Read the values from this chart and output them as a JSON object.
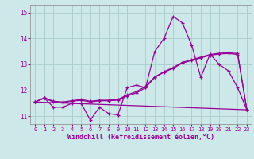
{
  "xlabel": "Windchill (Refroidissement éolien,°C)",
  "background_color": "#cce8e8",
  "grid_color": "#aacccc",
  "line_color": "#990099",
  "ylim": [
    10.7,
    15.3
  ],
  "xlim": [
    -0.5,
    23.5
  ],
  "yticks": [
    11,
    12,
    13,
    14,
    15
  ],
  "xticks": [
    0,
    1,
    2,
    3,
    4,
    5,
    6,
    7,
    8,
    9,
    10,
    11,
    12,
    13,
    14,
    15,
    16,
    17,
    18,
    19,
    20,
    21,
    22,
    23
  ],
  "curve1_x": [
    0,
    1,
    2,
    3,
    4,
    5,
    6,
    7,
    8,
    9,
    10,
    11,
    12,
    13,
    14,
    15,
    16,
    17,
    18,
    19,
    20,
    21,
    22,
    23
  ],
  "curve1_y": [
    11.55,
    11.7,
    11.35,
    11.35,
    11.5,
    11.5,
    10.85,
    11.35,
    11.1,
    11.05,
    12.1,
    12.2,
    12.1,
    13.5,
    14.0,
    14.85,
    14.6,
    13.75,
    12.5,
    13.4,
    13.0,
    12.75,
    12.1,
    11.25
  ],
  "curve2_x": [
    0,
    1,
    2,
    3,
    4,
    5,
    6,
    7,
    8,
    9,
    10,
    11,
    12,
    13,
    14,
    15,
    16,
    17,
    18,
    19,
    20,
    21,
    22,
    23
  ],
  "curve2_y": [
    11.55,
    11.7,
    11.55,
    11.52,
    11.58,
    11.62,
    11.55,
    11.6,
    11.6,
    11.62,
    11.78,
    11.9,
    12.1,
    12.5,
    12.7,
    12.85,
    13.05,
    13.15,
    13.25,
    13.35,
    13.4,
    13.42,
    13.38,
    11.25
  ],
  "curve3_x": [
    0,
    23
  ],
  "curve3_y": [
    11.55,
    11.25
  ],
  "curve4_x": [
    0,
    1,
    2,
    3,
    4,
    5,
    6,
    7,
    8,
    9,
    10,
    11,
    12,
    13,
    14,
    15,
    16,
    17,
    18,
    19,
    20,
    21,
    22,
    23
  ],
  "curve4_y": [
    11.55,
    11.72,
    11.58,
    11.55,
    11.6,
    11.65,
    11.58,
    11.62,
    11.62,
    11.65,
    11.82,
    11.95,
    12.15,
    12.52,
    12.72,
    12.88,
    13.08,
    13.18,
    13.28,
    13.38,
    13.43,
    13.45,
    13.42,
    11.25
  ]
}
